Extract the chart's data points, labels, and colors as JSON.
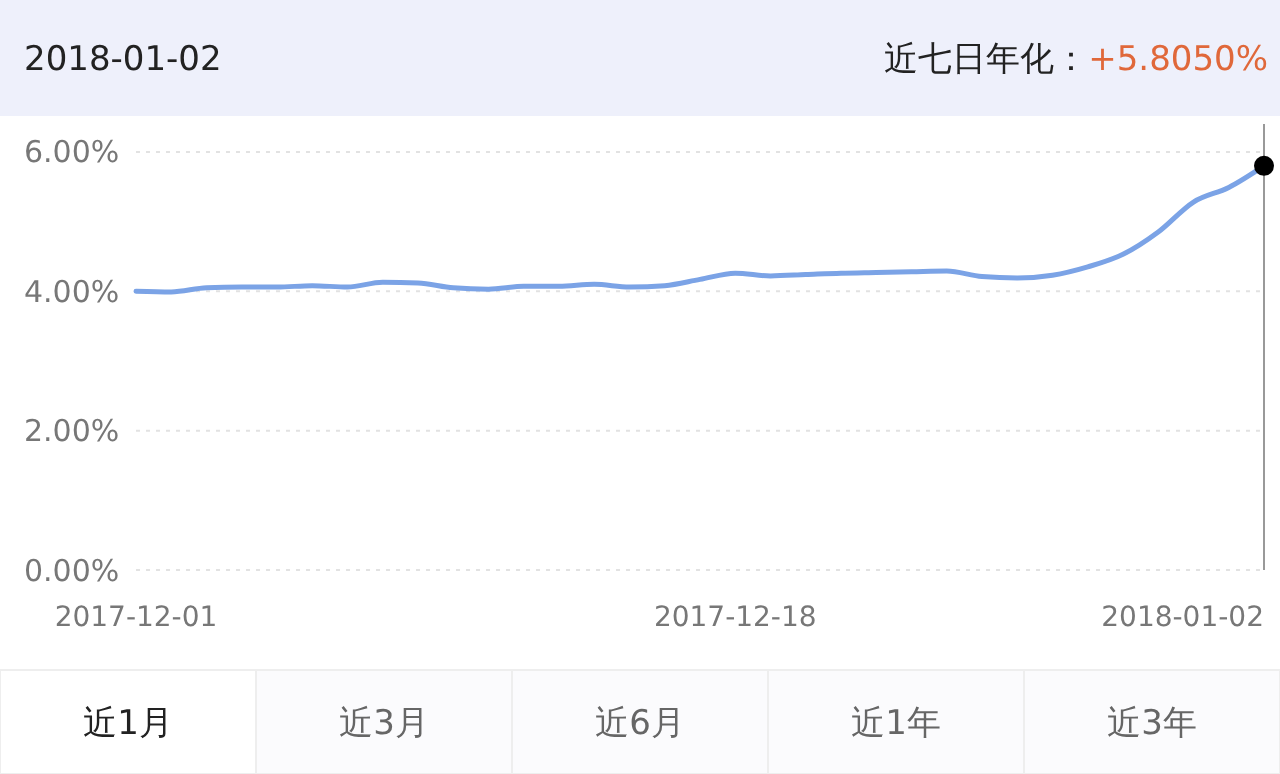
{
  "chart_data": {
    "type": "line",
    "title": "2018-01-02",
    "annotations": [
      "近七日年化：",
      "+5.8050%",
      "近1月",
      "近3月",
      "近6月",
      "近1年",
      "近3年"
    ],
    "x": [
      "2017-12-01",
      "2017-12-02",
      "2017-12-03",
      "2017-12-04",
      "2017-12-05",
      "2017-12-06",
      "2017-12-07",
      "2017-12-08",
      "2017-12-09",
      "2017-12-10",
      "2017-12-11",
      "2017-12-12",
      "2017-12-13",
      "2017-12-14",
      "2017-12-15",
      "2017-12-16",
      "2017-12-17",
      "2017-12-18",
      "2017-12-19",
      "2017-12-20",
      "2017-12-21",
      "2017-12-22",
      "2017-12-23",
      "2017-12-24",
      "2017-12-25",
      "2017-12-26",
      "2017-12-27",
      "2017-12-28",
      "2017-12-29",
      "2017-12-30",
      "2017-12-31",
      "2018-01-01",
      "2018-01-02"
    ],
    "series": [
      {
        "color": "#7ba3e6",
        "marker": "none",
        "values": [
          4.0,
          3.99,
          4.05,
          4.06,
          4.06,
          4.08,
          4.06,
          4.13,
          4.12,
          4.05,
          4.03,
          4.07,
          4.07,
          4.1,
          4.06,
          4.08,
          4.17,
          4.26,
          4.22,
          4.24,
          4.26,
          4.27,
          4.28,
          4.29,
          4.21,
          4.19,
          4.23,
          4.35,
          4.53,
          4.85,
          5.28,
          5.49,
          5.8
        ]
      },
      {
        "type": "scatter",
        "marker": "circle",
        "color": "#000000",
        "x": [
          "2018-01-02"
        ],
        "values": [
          5.8
        ]
      }
    ],
    "xlim": [
      "2017-12-01",
      "2018-01-02"
    ],
    "xticks": [
      {
        "value": "2017-12-01",
        "label": "2017-12-01"
      },
      {
        "value": "2017-12-18",
        "label": "2017-12-18"
      },
      {
        "value": "2018-01-02",
        "label": "2018-01-02"
      }
    ],
    "ylim": [
      0,
      6.4
    ],
    "yticks": [
      {
        "value": 0,
        "label": "0.00%"
      },
      {
        "value": 2,
        "label": "2.00%"
      },
      {
        "value": 4,
        "label": "4.00%"
      },
      {
        "value": 6,
        "label": "6.00%"
      }
    ],
    "ref_lines": [
      {
        "axis": "x",
        "value": "2018-01-02",
        "color": "#999999"
      }
    ],
    "grid": "y",
    "line_style": "solid"
  }
}
